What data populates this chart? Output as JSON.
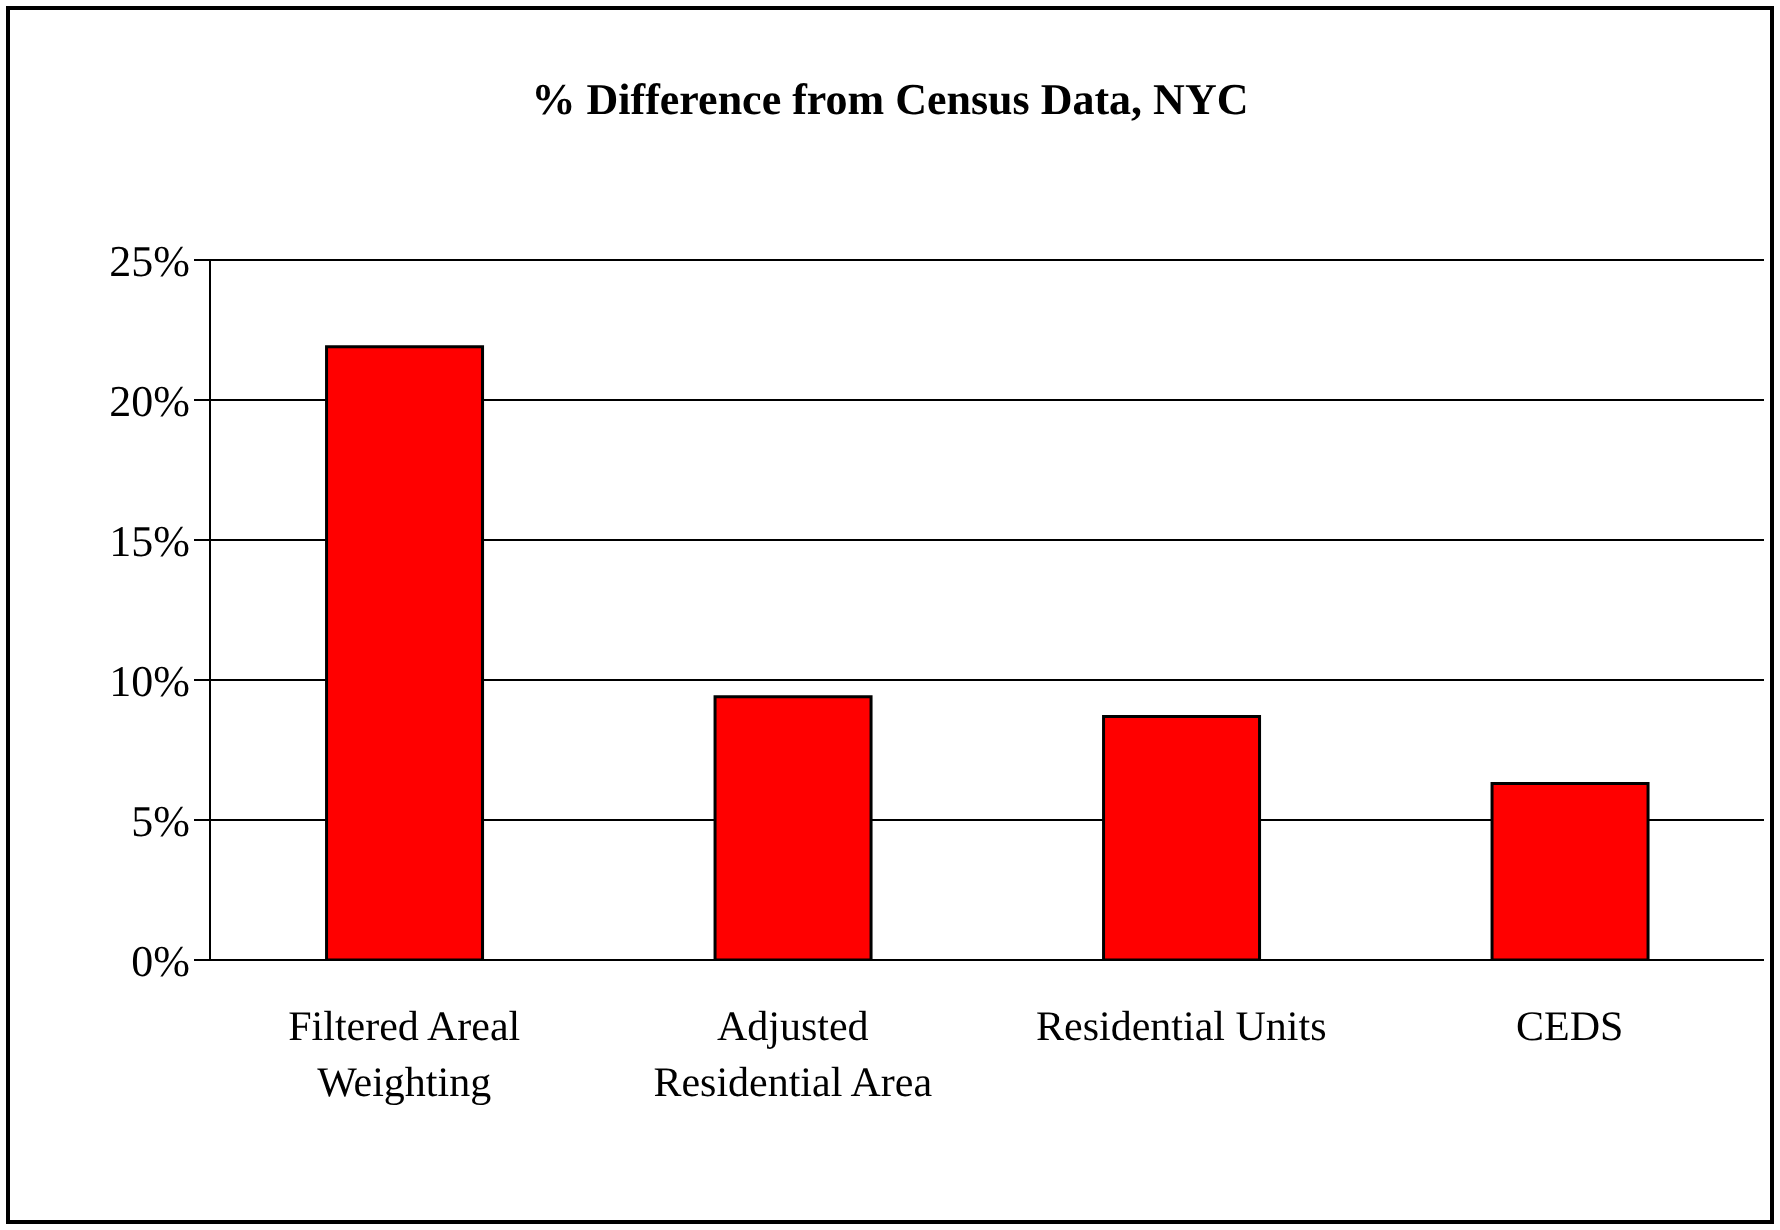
{
  "chart_data": {
    "type": "bar",
    "title": "% Difference from Census Data, NYC",
    "categories": [
      "Filtered Areal Weighting",
      "Adjusted Residential Area",
      "Residential Units",
      "CEDS"
    ],
    "values": [
      21.9,
      9.4,
      8.7,
      6.3
    ],
    "color": "#ff0000",
    "ylim": [
      0,
      25
    ],
    "yticks": [
      {
        "value": 0,
        "label": "0%"
      },
      {
        "value": 5,
        "label": "5%"
      },
      {
        "value": 10,
        "label": "10%"
      },
      {
        "value": 15,
        "label": "15%"
      },
      {
        "value": 20,
        "label": "20%"
      },
      {
        "value": 25,
        "label": "25%"
      }
    ],
    "grid": "y"
  }
}
